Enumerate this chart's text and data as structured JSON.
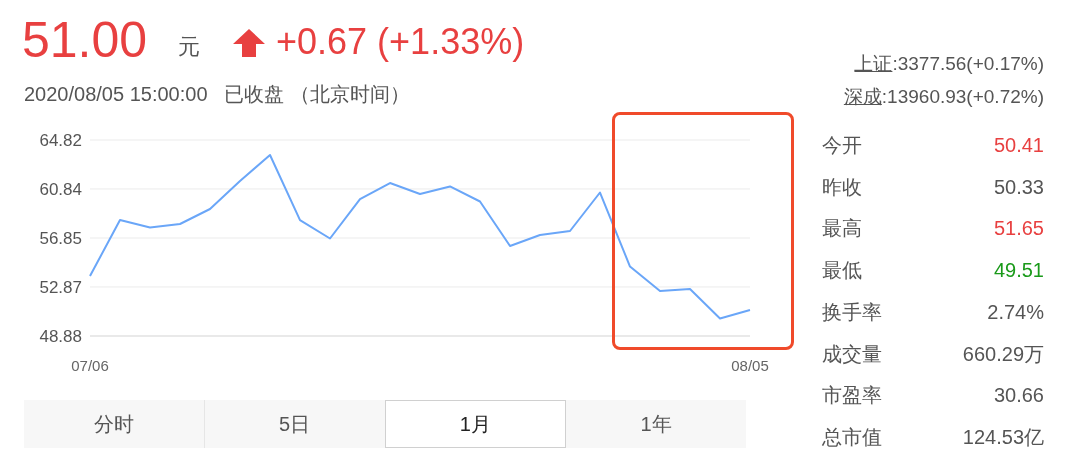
{
  "chart_data": [
    {
      "type": "line",
      "title": "51.00",
      "subtitle": "2020/08/05 15:00:00   已收盘 （北京时间）",
      "annotations": [
        "元",
        "+0.67 (+1.33%)",
        "分时",
        "5日",
        "1月",
        "1年"
      ],
      "categories": [
        "07/06",
        null,
        null,
        null,
        null,
        null,
        null,
        null,
        null,
        null,
        null,
        null,
        null,
        null,
        null,
        null,
        null,
        null,
        null,
        null,
        null,
        null,
        "08/05"
      ],
      "series": [
        {
          "color": "#6aa6f8",
          "values": [
            53.76,
            58.31,
            57.7,
            57.99,
            59.21,
            61.49,
            63.6,
            58.31,
            56.81,
            60.02,
            61.32,
            60.43,
            61.04,
            59.82,
            56.2,
            57.09,
            57.42,
            60.55,
            54.53,
            52.54,
            52.7,
            50.3,
            51.0
          ]
        }
      ],
      "ylim": [
        48.88,
        64.82
      ],
      "yticks": [
        48.88,
        52.87,
        56.85,
        60.84,
        64.82
      ],
      "grid": "y",
      "marker": "none",
      "line_style": "solid"
    },
    {
      "type": "other",
      "annotations": [
        "上证:3377.56(+0.17%)",
        "深成:13960.93(+0.72%)"
      ],
      "categories": [
        "今开",
        "昨收",
        "最高",
        "最低",
        "换手率",
        "成交量",
        "市盈率",
        "总市值"
      ],
      "value_labels": [
        "50.41",
        "50.33",
        "51.65",
        "49.51",
        "2.74%",
        "660.29万",
        "30.66",
        "124.53亿"
      ],
      "colors": [
        "#e84040",
        "#555555",
        "#e84040",
        "#1a9a1a",
        "#555555",
        "#555555",
        "#555555",
        "#555555"
      ]
    }
  ]
}
